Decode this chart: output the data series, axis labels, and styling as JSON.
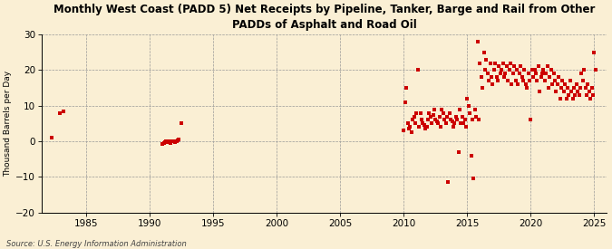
{
  "title": "Monthly West Coast (PADD 5) Net Receipts by Pipeline, Tanker, Barge and Rail from Other\nPADDs of Asphalt and Road Oil",
  "ylabel": "Thousand Barrels per Day",
  "source": "Source: U.S. Energy Information Administration",
  "background_color": "#faefd4",
  "marker_color": "#cc0000",
  "xlim": [
    1981.5,
    2026
  ],
  "ylim": [
    -20,
    30
  ],
  "yticks": [
    -20,
    -10,
    0,
    10,
    20,
    30
  ],
  "xticks": [
    1985,
    1990,
    1995,
    2000,
    2005,
    2010,
    2015,
    2020,
    2025
  ],
  "data_points": [
    [
      1982.3,
      1.0
    ],
    [
      1982.9,
      8.0
    ],
    [
      1983.2,
      8.5
    ],
    [
      1991.0,
      -0.8
    ],
    [
      1991.1,
      -0.5
    ],
    [
      1991.2,
      -0.3
    ],
    [
      1991.3,
      0.0
    ],
    [
      1991.4,
      0.0
    ],
    [
      1991.5,
      -0.2
    ],
    [
      1991.6,
      -0.4
    ],
    [
      1991.7,
      0.0
    ],
    [
      1991.8,
      0.0
    ],
    [
      1991.9,
      0.1
    ],
    [
      1992.0,
      -0.2
    ],
    [
      1992.1,
      0.0
    ],
    [
      1992.2,
      0.2
    ],
    [
      1992.3,
      0.4
    ],
    [
      1992.5,
      5.0
    ],
    [
      2010.0,
      3.0
    ],
    [
      2010.1,
      11.0
    ],
    [
      2010.2,
      15.0
    ],
    [
      2010.3,
      5.0
    ],
    [
      2010.4,
      3.5
    ],
    [
      2010.5,
      4.0
    ],
    [
      2010.6,
      2.5
    ],
    [
      2010.7,
      6.0
    ],
    [
      2010.8,
      7.0
    ],
    [
      2010.9,
      5.0
    ],
    [
      2011.0,
      8.0
    ],
    [
      2011.1,
      20.0
    ],
    [
      2011.2,
      4.0
    ],
    [
      2011.3,
      8.0
    ],
    [
      2011.4,
      6.0
    ],
    [
      2011.5,
      5.0
    ],
    [
      2011.6,
      4.5
    ],
    [
      2011.7,
      3.5
    ],
    [
      2011.8,
      4.0
    ],
    [
      2011.9,
      6.0
    ],
    [
      2012.0,
      8.0
    ],
    [
      2012.1,
      7.0
    ],
    [
      2012.2,
      5.0
    ],
    [
      2012.3,
      7.5
    ],
    [
      2012.4,
      9.0
    ],
    [
      2012.5,
      6.0
    ],
    [
      2012.6,
      5.5
    ],
    [
      2012.7,
      5.0
    ],
    [
      2012.8,
      7.0
    ],
    [
      2012.9,
      4.0
    ],
    [
      2013.0,
      9.0
    ],
    [
      2013.1,
      8.0
    ],
    [
      2013.2,
      6.0
    ],
    [
      2013.3,
      5.0
    ],
    [
      2013.4,
      7.0
    ],
    [
      2013.5,
      -11.5
    ],
    [
      2013.6,
      8.0
    ],
    [
      2013.7,
      6.0
    ],
    [
      2013.8,
      5.5
    ],
    [
      2013.9,
      4.0
    ],
    [
      2014.0,
      5.0
    ],
    [
      2014.1,
      7.0
    ],
    [
      2014.2,
      6.0
    ],
    [
      2014.3,
      -3.0
    ],
    [
      2014.4,
      9.0
    ],
    [
      2014.5,
      5.0
    ],
    [
      2014.6,
      7.0
    ],
    [
      2014.7,
      5.0
    ],
    [
      2014.8,
      6.0
    ],
    [
      2014.9,
      4.0
    ],
    [
      2015.0,
      12.0
    ],
    [
      2015.1,
      10.0
    ],
    [
      2015.2,
      8.0
    ],
    [
      2015.3,
      -4.0
    ],
    [
      2015.4,
      6.0
    ],
    [
      2015.5,
      -10.5
    ],
    [
      2015.6,
      9.0
    ],
    [
      2015.7,
      7.0
    ],
    [
      2015.83,
      28.0
    ],
    [
      2015.9,
      6.0
    ],
    [
      2016.0,
      22.0
    ],
    [
      2016.1,
      18.0
    ],
    [
      2016.2,
      15.0
    ],
    [
      2016.3,
      25.0
    ],
    [
      2016.4,
      20.0
    ],
    [
      2016.5,
      23.0
    ],
    [
      2016.6,
      19.0
    ],
    [
      2016.7,
      17.0
    ],
    [
      2016.8,
      22.0
    ],
    [
      2016.9,
      18.0
    ],
    [
      2017.0,
      16.0
    ],
    [
      2017.1,
      20.0
    ],
    [
      2017.2,
      22.0
    ],
    [
      2017.3,
      18.0
    ],
    [
      2017.4,
      17.0
    ],
    [
      2017.5,
      21.0
    ],
    [
      2017.6,
      19.0
    ],
    [
      2017.7,
      20.0
    ],
    [
      2017.8,
      22.0
    ],
    [
      2017.9,
      18.0
    ],
    [
      2018.0,
      19.0
    ],
    [
      2018.1,
      21.0
    ],
    [
      2018.2,
      17.0
    ],
    [
      2018.3,
      20.0
    ],
    [
      2018.4,
      22.0
    ],
    [
      2018.5,
      16.0
    ],
    [
      2018.6,
      19.0
    ],
    [
      2018.7,
      21.0
    ],
    [
      2018.8,
      17.0
    ],
    [
      2018.9,
      20.0
    ],
    [
      2019.0,
      16.0
    ],
    [
      2019.1,
      19.0
    ],
    [
      2019.2,
      21.0
    ],
    [
      2019.3,
      18.0
    ],
    [
      2019.4,
      17.0
    ],
    [
      2019.5,
      20.0
    ],
    [
      2019.6,
      16.0
    ],
    [
      2019.7,
      15.0
    ],
    [
      2019.8,
      19.0
    ],
    [
      2019.9,
      17.0
    ],
    [
      2020.0,
      6.0
    ],
    [
      2020.1,
      20.0
    ],
    [
      2020.2,
      18.0
    ],
    [
      2020.3,
      20.0
    ],
    [
      2020.4,
      19.0
    ],
    [
      2020.5,
      17.0
    ],
    [
      2020.6,
      21.0
    ],
    [
      2020.7,
      14.0
    ],
    [
      2020.8,
      18.0
    ],
    [
      2020.9,
      19.0
    ],
    [
      2021.0,
      20.0
    ],
    [
      2021.1,
      17.0
    ],
    [
      2021.2,
      19.0
    ],
    [
      2021.3,
      21.0
    ],
    [
      2021.4,
      15.0
    ],
    [
      2021.5,
      18.0
    ],
    [
      2021.6,
      20.0
    ],
    [
      2021.7,
      16.0
    ],
    [
      2021.8,
      19.0
    ],
    [
      2021.9,
      17.0
    ],
    [
      2022.0,
      14.0
    ],
    [
      2022.1,
      16.0
    ],
    [
      2022.2,
      18.0
    ],
    [
      2022.3,
      12.0
    ],
    [
      2022.4,
      15.0
    ],
    [
      2022.5,
      17.0
    ],
    [
      2022.6,
      14.0
    ],
    [
      2022.7,
      16.0
    ],
    [
      2022.8,
      12.0
    ],
    [
      2022.9,
      15.0
    ],
    [
      2023.0,
      13.0
    ],
    [
      2023.1,
      17.0
    ],
    [
      2023.2,
      14.0
    ],
    [
      2023.3,
      12.0
    ],
    [
      2023.4,
      15.0
    ],
    [
      2023.5,
      13.0
    ],
    [
      2023.6,
      16.0
    ],
    [
      2023.7,
      14.0
    ],
    [
      2023.8,
      13.0
    ],
    [
      2023.9,
      15.0
    ],
    [
      2024.0,
      19.0
    ],
    [
      2024.1,
      17.0
    ],
    [
      2024.2,
      20.0
    ],
    [
      2024.3,
      15.0
    ],
    [
      2024.4,
      13.0
    ],
    [
      2024.5,
      16.0
    ],
    [
      2024.6,
      14.0
    ],
    [
      2024.7,
      12.0
    ],
    [
      2024.8,
      15.0
    ],
    [
      2024.9,
      13.0
    ],
    [
      2025.0,
      25.0
    ],
    [
      2025.1,
      20.0
    ]
  ]
}
